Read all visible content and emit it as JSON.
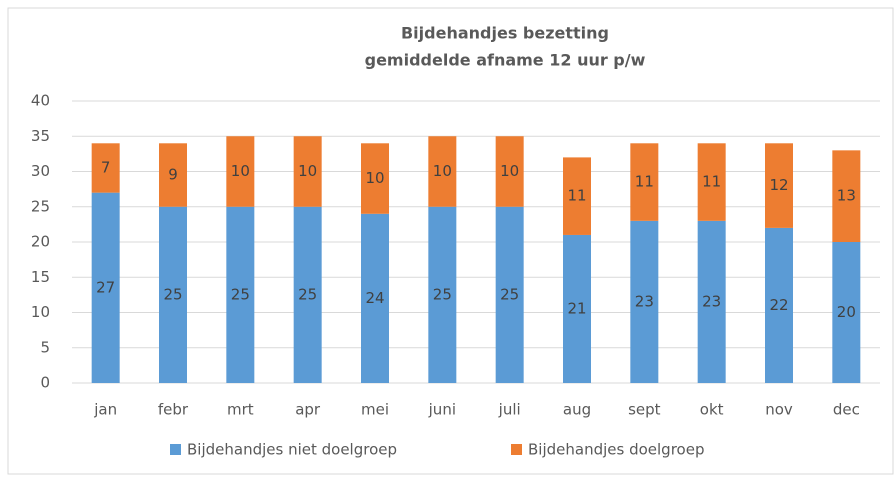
{
  "chart_data": {
    "type": "stacked_bar",
    "title": "Bijdehandjes bezetting",
    "subtitle": "gemiddelde afname 12 uur p/w",
    "categories": [
      "jan",
      "febr",
      "mrt",
      "apr",
      "mei",
      "juni",
      "juli",
      "aug",
      "sept",
      "okt",
      "nov",
      "dec"
    ],
    "series": [
      {
        "name": "Bijdehandjes niet doelgroep",
        "color": "#5b9bd5",
        "values": [
          27,
          25,
          25,
          25,
          24,
          25,
          25,
          21,
          23,
          23,
          22,
          20
        ]
      },
      {
        "name": "Bijdehandjes doelgroep",
        "color": "#ed7d31",
        "values": [
          7,
          9,
          10,
          10,
          10,
          10,
          10,
          11,
          11,
          11,
          12,
          13
        ]
      }
    ],
    "ylim": [
      0,
      40
    ],
    "yticks": [
      0,
      5,
      10,
      15,
      20,
      25,
      30,
      35,
      40
    ],
    "grid": true,
    "legend": "bottom"
  }
}
